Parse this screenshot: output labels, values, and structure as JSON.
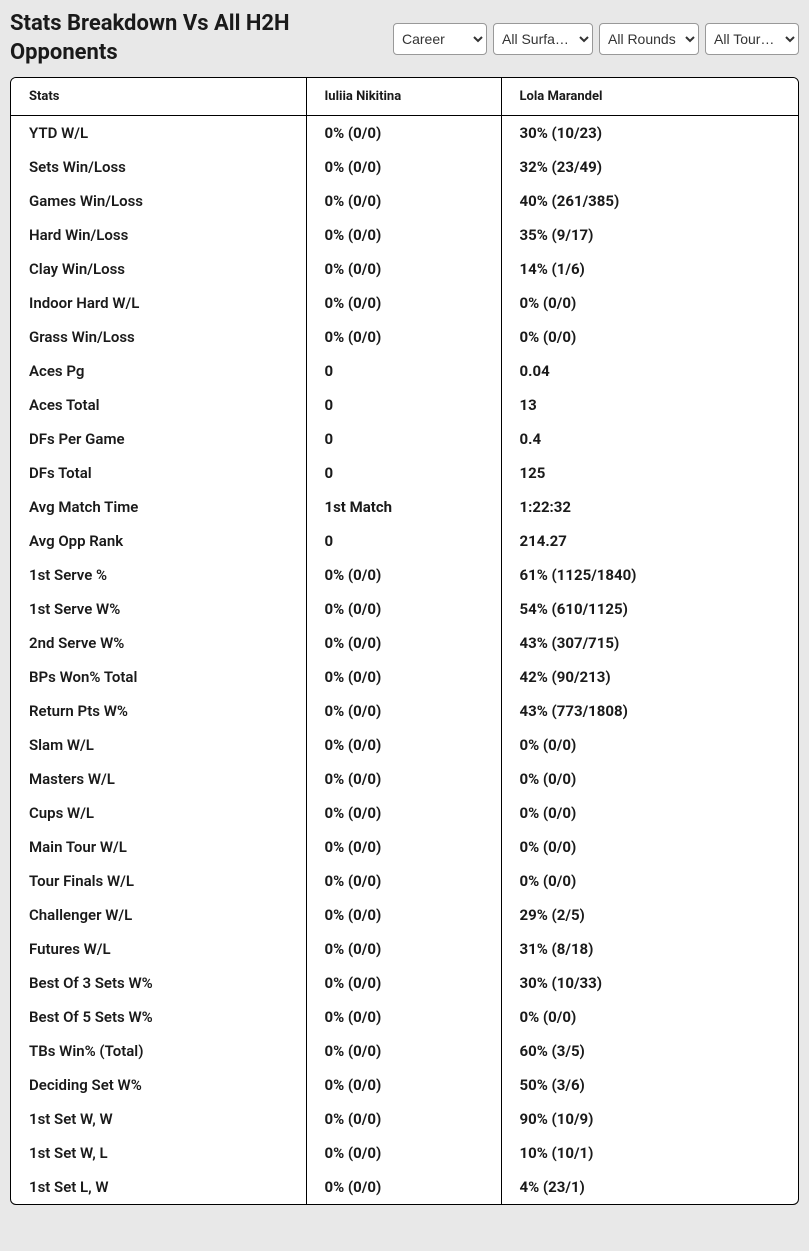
{
  "header": {
    "title": "Stats Breakdown Vs All H2H Opponents",
    "filters": {
      "career": {
        "selected": "Career"
      },
      "surface": {
        "selected": "All Surfa…"
      },
      "round": {
        "selected": "All Rounds"
      },
      "tour": {
        "selected": "All Tour…"
      }
    }
  },
  "table": {
    "columns": {
      "stats": "Stats",
      "player1": "Iuliia Nikitina",
      "player2": "Lola Marandel"
    },
    "rows": [
      {
        "stat": "YTD W/L",
        "p1": "0% (0/0)",
        "p2": "30% (10/23)"
      },
      {
        "stat": "Sets Win/Loss",
        "p1": "0% (0/0)",
        "p2": "32% (23/49)"
      },
      {
        "stat": "Games Win/Loss",
        "p1": "0% (0/0)",
        "p2": "40% (261/385)"
      },
      {
        "stat": "Hard Win/Loss",
        "p1": "0% (0/0)",
        "p2": "35% (9/17)"
      },
      {
        "stat": "Clay Win/Loss",
        "p1": "0% (0/0)",
        "p2": "14% (1/6)"
      },
      {
        "stat": "Indoor Hard W/L",
        "p1": "0% (0/0)",
        "p2": "0% (0/0)"
      },
      {
        "stat": "Grass Win/Loss",
        "p1": "0% (0/0)",
        "p2": "0% (0/0)"
      },
      {
        "stat": "Aces Pg",
        "p1": "0",
        "p2": "0.04"
      },
      {
        "stat": "Aces Total",
        "p1": "0",
        "p2": "13"
      },
      {
        "stat": "DFs Per Game",
        "p1": "0",
        "p2": "0.4"
      },
      {
        "stat": "DFs Total",
        "p1": "0",
        "p2": "125"
      },
      {
        "stat": "Avg Match Time",
        "p1": "1st Match",
        "p2": "1:22:32"
      },
      {
        "stat": "Avg Opp Rank",
        "p1": "0",
        "p2": "214.27"
      },
      {
        "stat": "1st Serve %",
        "p1": "0% (0/0)",
        "p2": "61% (1125/1840)"
      },
      {
        "stat": "1st Serve W%",
        "p1": "0% (0/0)",
        "p2": "54% (610/1125)"
      },
      {
        "stat": "2nd Serve W%",
        "p1": "0% (0/0)",
        "p2": "43% (307/715)"
      },
      {
        "stat": "BPs Won% Total",
        "p1": "0% (0/0)",
        "p2": "42% (90/213)"
      },
      {
        "stat": "Return Pts W%",
        "p1": "0% (0/0)",
        "p2": "43% (773/1808)"
      },
      {
        "stat": "Slam W/L",
        "p1": "0% (0/0)",
        "p2": "0% (0/0)"
      },
      {
        "stat": "Masters W/L",
        "p1": "0% (0/0)",
        "p2": "0% (0/0)"
      },
      {
        "stat": "Cups W/L",
        "p1": "0% (0/0)",
        "p2": "0% (0/0)"
      },
      {
        "stat": "Main Tour W/L",
        "p1": "0% (0/0)",
        "p2": "0% (0/0)"
      },
      {
        "stat": "Tour Finals W/L",
        "p1": "0% (0/0)",
        "p2": "0% (0/0)"
      },
      {
        "stat": "Challenger W/L",
        "p1": "0% (0/0)",
        "p2": "29% (2/5)"
      },
      {
        "stat": "Futures W/L",
        "p1": "0% (0/0)",
        "p2": "31% (8/18)"
      },
      {
        "stat": "Best Of 3 Sets W%",
        "p1": "0% (0/0)",
        "p2": "30% (10/33)"
      },
      {
        "stat": "Best Of 5 Sets W%",
        "p1": "0% (0/0)",
        "p2": "0% (0/0)"
      },
      {
        "stat": "TBs Win% (Total)",
        "p1": "0% (0/0)",
        "p2": "60% (3/5)"
      },
      {
        "stat": "Deciding Set W%",
        "p1": "0% (0/0)",
        "p2": "50% (3/6)"
      },
      {
        "stat": "1st Set W, W",
        "p1": "0% (0/0)",
        "p2": "90% (10/9)"
      },
      {
        "stat": "1st Set W, L",
        "p1": "0% (0/0)",
        "p2": "10% (10/1)"
      },
      {
        "stat": "1st Set L, W",
        "p1": "0% (0/0)",
        "p2": "4% (23/1)"
      }
    ]
  },
  "style": {
    "background_color": "#e8e8e8",
    "table_background": "#ffffff",
    "border_color": "#000000",
    "text_color": "#1a1a1a",
    "title_fontsize": 22,
    "header_fontsize": 13,
    "cell_fontsize": 15,
    "col_widths": {
      "stats": 295,
      "p1": 195
    }
  }
}
